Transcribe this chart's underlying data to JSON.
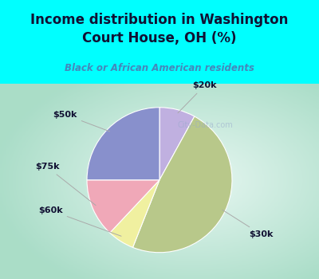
{
  "title": "Income distribution in Washington\nCourt House, OH (%)",
  "subtitle": "Black or African American residents",
  "slices": [
    {
      "label": "$20k",
      "value": 8,
      "color": "#c0b0e0"
    },
    {
      "label": "$30k",
      "value": 48,
      "color": "#b8c88a"
    },
    {
      "label": "$60k",
      "value": 6,
      "color": "#f0f0a0"
    },
    {
      "label": "$75k",
      "value": 13,
      "color": "#f0a8b8"
    },
    {
      "label": "$50k",
      "value": 25,
      "color": "#8890cc"
    }
  ],
  "bg_top": "#00ffff",
  "bg_chart_outer": "#aae0cc",
  "bg_chart_inner": "#e8f8f0",
  "title_color": "#111133",
  "subtitle_color": "#4488bb",
  "watermark": "City-Data.com",
  "start_angle": 90,
  "label_arrows": [
    {
      "label": "$20k",
      "xt": 0.62,
      "yt": 1.3
    },
    {
      "label": "$30k",
      "xt": 1.4,
      "yt": -0.75
    },
    {
      "label": "$60k",
      "xt": -1.5,
      "yt": -0.42
    },
    {
      "label": "$75k",
      "xt": -1.55,
      "yt": 0.18
    },
    {
      "label": "$50k",
      "xt": -1.3,
      "yt": 0.9
    }
  ]
}
